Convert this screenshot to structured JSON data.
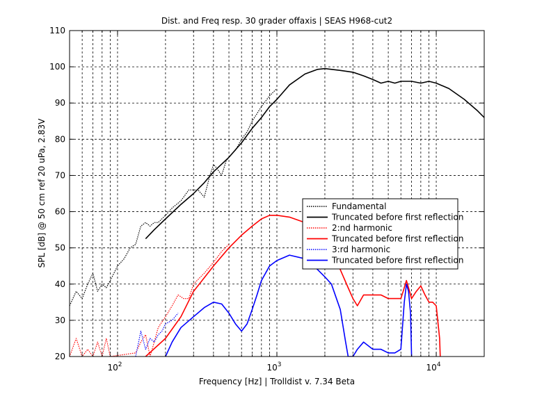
{
  "chart_data": {
    "type": "line",
    "title": "Dist. and Freq resp. 30 grader offaxis | SEAS H968-cut2",
    "xlabel": "Frequency [Hz] | Trolldist v. 7.34 Beta",
    "ylabel": "SPL [dB] @ 50 cm ref 20 uPa, 2.83V",
    "x_scale": "log",
    "xlim": [
      50,
      20000
    ],
    "ylim": [
      20,
      110
    ],
    "grid": true,
    "legend_position": "center-right",
    "y_ticks": [
      "20",
      "30",
      "40",
      "50",
      "60",
      "70",
      "80",
      "90",
      "100",
      "110"
    ],
    "x_ticks": [
      {
        "value": 100,
        "base": "10",
        "exp": "2"
      },
      {
        "value": 1000,
        "base": "10",
        "exp": "3"
      },
      {
        "value": 10000,
        "base": "10",
        "exp": "4"
      }
    ],
    "series": [
      {
        "name": "Fundamental",
        "color": "#000000",
        "style": "dotted",
        "x": [
          50,
          55,
          60,
          65,
          70,
          75,
          80,
          85,
          90,
          100,
          110,
          120,
          130,
          140,
          150,
          160,
          170,
          180,
          200,
          220,
          250,
          280,
          300,
          320,
          350,
          380,
          400,
          420,
          450,
          480,
          500,
          550,
          600,
          650,
          700,
          800,
          900,
          1000
        ],
        "y": [
          34,
          38,
          36,
          40,
          43,
          38,
          40,
          39,
          41,
          45,
          47,
          50,
          51,
          56,
          57,
          56,
          57,
          57,
          59,
          61,
          63,
          66,
          66,
          66,
          64,
          70,
          73,
          72,
          70,
          74,
          75,
          77,
          80,
          82,
          85,
          89,
          92,
          94
        ]
      },
      {
        "name": "Truncated before first reflection",
        "color": "#000000",
        "style": "solid",
        "x": [
          150,
          170,
          200,
          250,
          300,
          350,
          400,
          500,
          600,
          700,
          800,
          900,
          1000,
          1200,
          1500,
          1800,
          2000,
          2500,
          3000,
          3500,
          4000,
          4500,
          5000,
          5500,
          6000,
          7000,
          8000,
          9000,
          10000,
          12000,
          15000,
          18000,
          20000
        ],
        "y": [
          52.5,
          55,
          58,
          62,
          65,
          68,
          71,
          75,
          79,
          83,
          86,
          89,
          91,
          95,
          98,
          99.3,
          99.5,
          99,
          98.5,
          97.5,
          96.5,
          95.5,
          96,
          95.5,
          96,
          96,
          95.5,
          96,
          95.5,
          94,
          91,
          88,
          86
        ]
      },
      {
        "name": "2:nd harmonic",
        "color": "#ff0000",
        "style": "dotted",
        "x": [
          50,
          55,
          60,
          65,
          70,
          75,
          80,
          85,
          90,
          130,
          140,
          150,
          160,
          170,
          180,
          200,
          220,
          240,
          260,
          280,
          300,
          350,
          400,
          450,
          500
        ],
        "y": [
          20,
          25,
          20,
          22,
          20,
          24,
          20,
          25,
          20,
          21,
          24,
          26,
          20,
          24,
          28,
          31,
          34,
          37,
          36,
          36,
          40,
          43,
          46,
          49,
          51
        ]
      },
      {
        "name": "Truncated before first reflection",
        "color": "#ff0000",
        "style": "solid",
        "x": [
          150,
          200,
          250,
          300,
          400,
          500,
          600,
          700,
          800,
          900,
          1000,
          1200,
          1500,
          1800,
          2000,
          2200,
          2500,
          2800,
          3000,
          3200,
          3500,
          4000,
          4500,
          5000,
          5500,
          6000,
          6200,
          6500,
          6800,
          7000,
          7500,
          8000,
          8500,
          9000,
          9500,
          10000,
          10500,
          10600
        ],
        "y": [
          20,
          25,
          31,
          38,
          45,
          50,
          53.5,
          56,
          58,
          59,
          59,
          58.5,
          57,
          55,
          53,
          49,
          44,
          39,
          36,
          34,
          37,
          37,
          37,
          36,
          36,
          36,
          38,
          41,
          38,
          36,
          38,
          39.5,
          37,
          35,
          35,
          34,
          25,
          20
        ]
      },
      {
        "name": "3:rd harmonic",
        "color": "#0000ff",
        "style": "dotted",
        "x": [
          130,
          140,
          150,
          160,
          170,
          180,
          190,
          200,
          220,
          240
        ],
        "y": [
          20,
          27,
          22,
          25,
          24,
          26,
          27,
          29,
          30,
          32
        ]
      },
      {
        "name": "Truncated before first reflection",
        "color": "#0000ff",
        "style": "solid",
        "x": [
          200,
          220,
          250,
          300,
          350,
          400,
          450,
          500,
          550,
          600,
          650,
          700,
          750,
          800,
          900,
          1000,
          1200,
          1500,
          1800,
          2000,
          2200,
          2500,
          2700,
          2800,
          3000,
          3200,
          3500,
          4000,
          4500,
          5000,
          5500,
          6000,
          6300,
          6500,
          6700,
          6900,
          7000
        ],
        "y": [
          20,
          24,
          28,
          31,
          33.5,
          35,
          34.5,
          32,
          29,
          27,
          29,
          33,
          37,
          41,
          45,
          46.5,
          48,
          47,
          44,
          42,
          40,
          33,
          24,
          20,
          20,
          22,
          24,
          22,
          22,
          21,
          21,
          22,
          35,
          40,
          38,
          32,
          20
        ]
      }
    ]
  }
}
